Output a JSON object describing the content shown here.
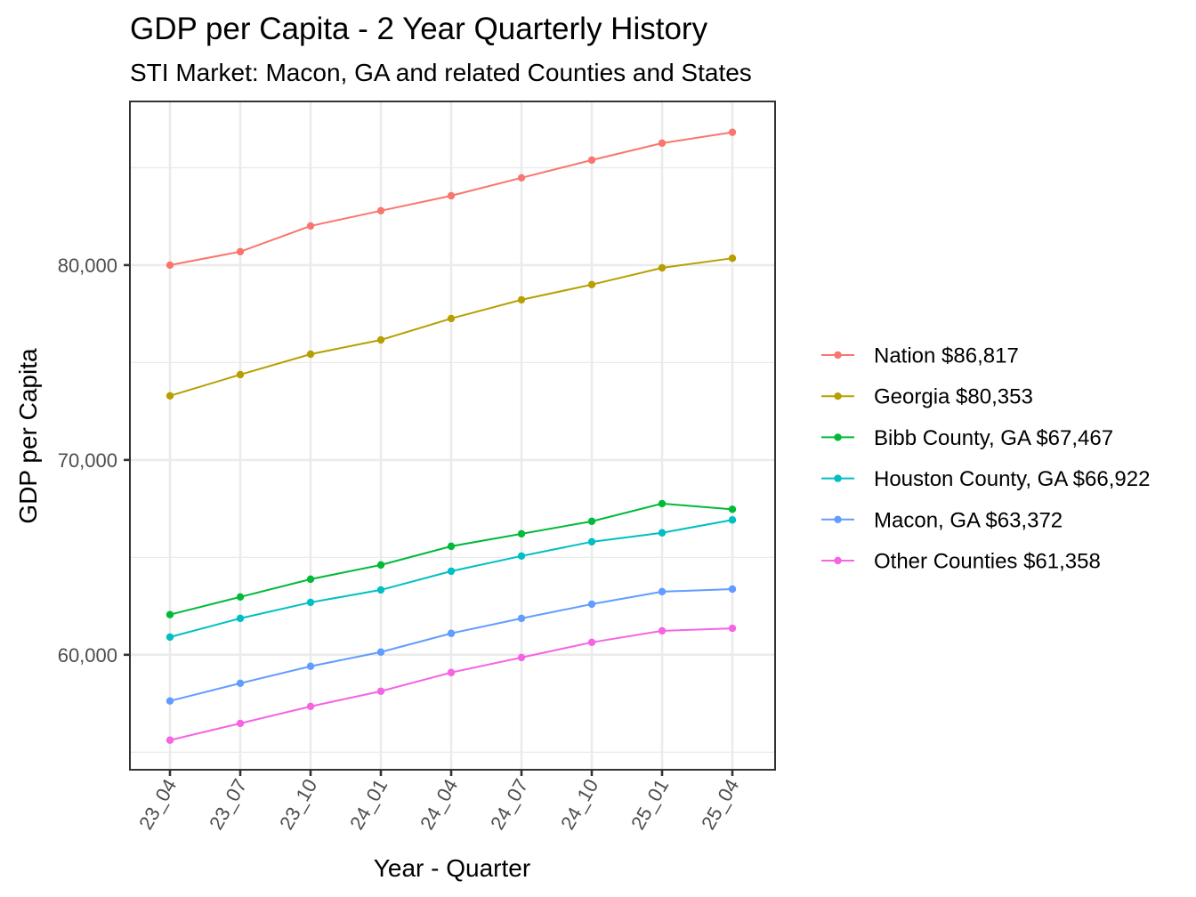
{
  "chart_data": {
    "type": "line",
    "title": "GDP per Capita - 2 Year Quarterly History",
    "subtitle": "STI Market: Macon, GA and related Counties and States",
    "xlabel": "Year - Quarter",
    "ylabel": "GDP per Capita",
    "categories": [
      "23_04",
      "23_07",
      "23_10",
      "24_01",
      "24_04",
      "24_07",
      "24_10",
      "25_01",
      "25_04"
    ],
    "ylim": [
      54100,
      88400
    ],
    "y_major_ticks": [
      60000,
      70000,
      80000
    ],
    "y_tick_labels": [
      "60,000",
      "70,000",
      "80,000"
    ],
    "y_minor_ticks": [
      55000,
      65000,
      75000,
      85000
    ],
    "grid": true,
    "legend_position": "right",
    "series": [
      {
        "name": "Nation",
        "legend_label": "Nation $86,817",
        "color": "#F8766D",
        "values": [
          80000,
          80690,
          82010,
          82790,
          83560,
          84480,
          85390,
          86260,
          86817
        ]
      },
      {
        "name": "Georgia",
        "legend_label": "Georgia $80,353",
        "color": "#B79F00",
        "values": [
          73290,
          74380,
          75430,
          76160,
          77260,
          78220,
          79000,
          79860,
          80353
        ]
      },
      {
        "name": "Bibb County, GA",
        "legend_label": "Bibb County, GA $67,467",
        "color": "#00BA38",
        "values": [
          62060,
          62970,
          63880,
          64610,
          65570,
          66210,
          66850,
          67760,
          67467
        ]
      },
      {
        "name": "Houston County, GA",
        "legend_label": "Houston County, GA $66,922",
        "color": "#00BFC4",
        "values": [
          60910,
          61870,
          62690,
          63330,
          64290,
          65070,
          65800,
          66260,
          66922
        ]
      },
      {
        "name": "Macon, GA",
        "legend_label": "Macon, GA $63,372",
        "color": "#619CFF",
        "values": [
          57630,
          58540,
          59410,
          60140,
          61100,
          61870,
          62600,
          63240,
          63372
        ]
      },
      {
        "name": "Other Counties",
        "legend_label": "Other Counties $61,358",
        "color": "#F564E3",
        "values": [
          55620,
          56480,
          57350,
          58130,
          59090,
          59860,
          60640,
          61230,
          61358
        ]
      }
    ]
  }
}
